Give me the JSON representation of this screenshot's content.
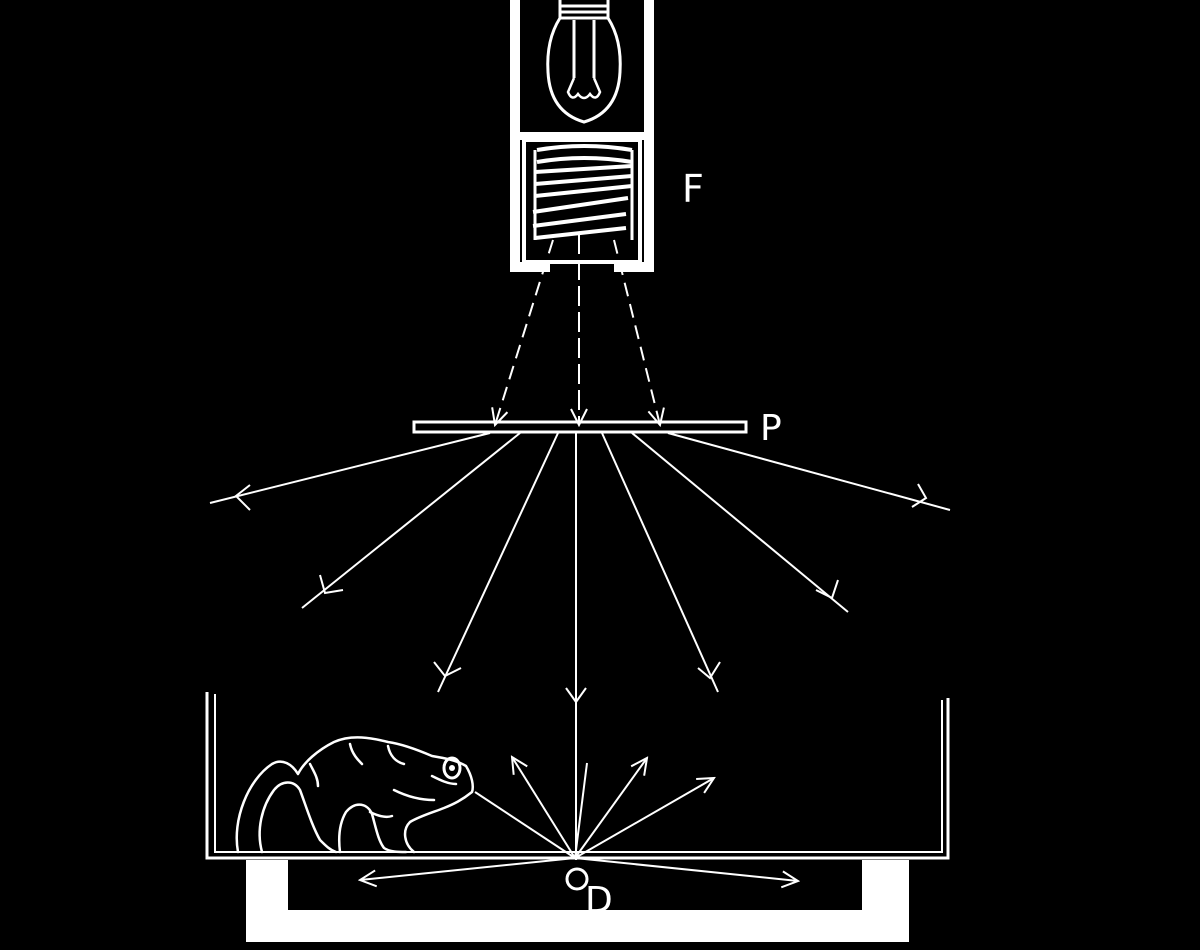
{
  "labels": {
    "filter": "F",
    "plate": "P",
    "detector": "D"
  },
  "colors": {
    "background": "#000000",
    "ink": "#ffffff"
  },
  "parts": {
    "lamp_housing": "lamp-housing",
    "bulb": "light-bulb-icon",
    "filter_assembly": "filter-assembly",
    "diffuser_plate": "diffuser-plate",
    "container": "container",
    "base_stand": "base-stand",
    "animal": "toad-icon"
  }
}
